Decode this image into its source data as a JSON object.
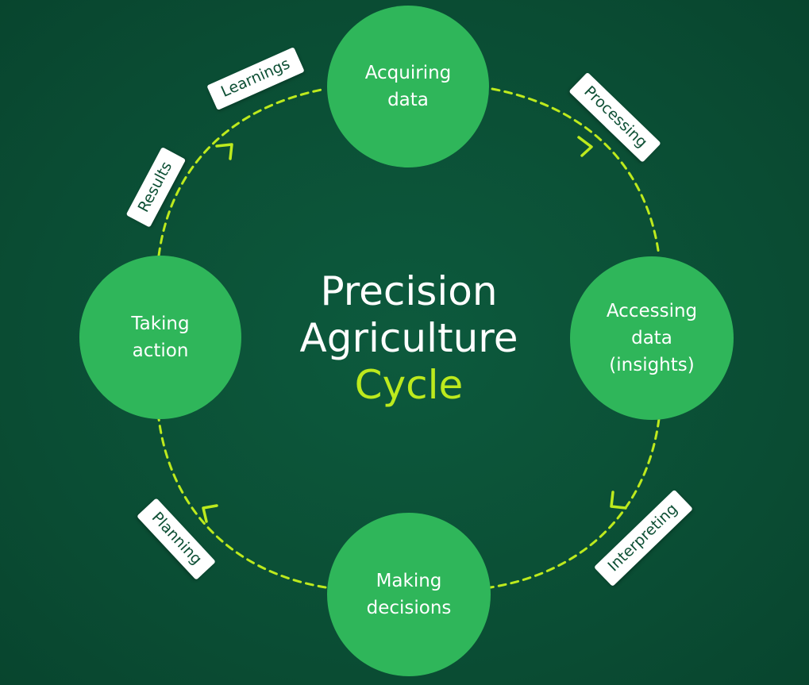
{
  "colors": {
    "background": "#0b4f36",
    "node_fill": "#2fb65a",
    "connector": "#bdea1d",
    "title_accent": "#bdea1d",
    "tag_fill": "#ffffff",
    "tag_text": "#0d4f34"
  },
  "title": {
    "line1": "Precision",
    "line2": "Agriculture",
    "line3": "Cycle"
  },
  "nodes": {
    "acquiring": {
      "line1": "Acquiring",
      "line2": "data"
    },
    "accessing": {
      "line1": "Accessing",
      "line2": "data",
      "line3": "(insights)"
    },
    "decisions": {
      "line1": "Making",
      "line2": "decisions"
    },
    "action": {
      "line1": "Taking",
      "line2": "action"
    }
  },
  "steps": {
    "processing": "Processing",
    "interpreting": "Interpreting",
    "planning": "Planning",
    "results": "Results",
    "learnings": "Learnings"
  }
}
